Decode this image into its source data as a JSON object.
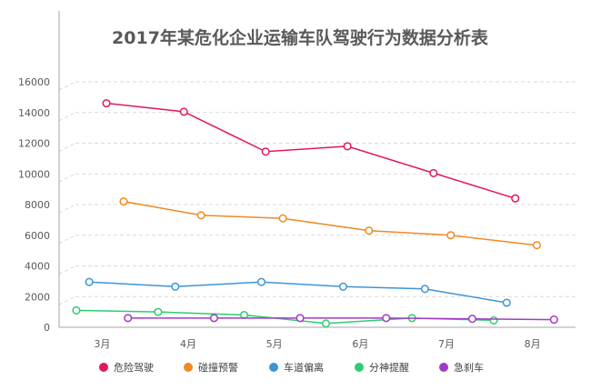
{
  "chart_data": {
    "type": "line",
    "title": "2017年某危化企业运输车队驾驶行为数据分析表",
    "xlabel": "",
    "ylabel": "",
    "ylim": [
      0,
      16000
    ],
    "yticks": [
      0,
      2000,
      4000,
      6000,
      8000,
      10000,
      12000,
      14000,
      16000
    ],
    "categories": [
      "3月",
      "4月",
      "5月",
      "6月",
      "7月",
      "8月"
    ],
    "grid": true,
    "legend_position": "bottom",
    "series": [
      {
        "name": "危险驾驶",
        "color": "#E0185D",
        "x": [
          3.05,
          3.95,
          4.9,
          5.85,
          6.85,
          7.8
        ],
        "y": [
          14600,
          14050,
          11450,
          11800,
          10050,
          8400
        ]
      },
      {
        "name": "碰撞预警",
        "color": "#F08A24",
        "x": [
          3.25,
          4.15,
          5.1,
          6.1,
          7.05,
          8.05
        ],
        "y": [
          8200,
          7300,
          7100,
          6300,
          6000,
          5350
        ]
      },
      {
        "name": "车道偏离",
        "color": "#3D94DA",
        "x": [
          2.85,
          3.85,
          4.85,
          5.8,
          6.75,
          7.7
        ],
        "y": [
          2950,
          2650,
          2950,
          2650,
          2500,
          1600
        ]
      },
      {
        "name": "分神提醒",
        "color": "#2ECC71",
        "x": [
          2.7,
          3.65,
          4.65,
          5.6,
          6.6,
          7.55
        ],
        "y": [
          1100,
          1000,
          800,
          250,
          600,
          450
        ]
      },
      {
        "name": "急刹车",
        "color": "#A23BC2",
        "x": [
          3.3,
          4.3,
          5.3,
          6.3,
          7.3,
          8.25
        ],
        "y": [
          600,
          600,
          600,
          600,
          550,
          500
        ]
      }
    ]
  }
}
